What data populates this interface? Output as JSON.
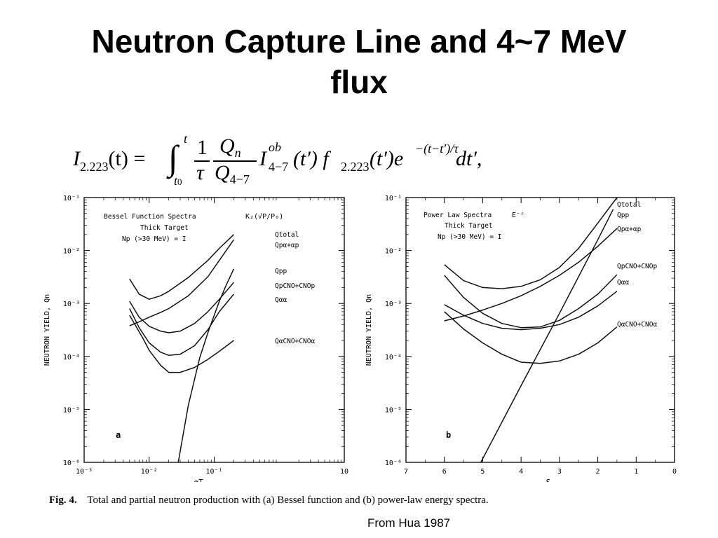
{
  "title": [
    "Neutron Capture Line and 4~7 MeV",
    "flux"
  ],
  "formula": {
    "lhs": "I",
    "lhs_sub": "2.223",
    "lhs_arg": "(t) =",
    "upper": "t",
    "lower": "t",
    "lower_sub": "0",
    "frac1_num": "1",
    "frac1_den": "τ",
    "frac2_num": "Q",
    "frac2_num_sub": "n",
    "frac2_den": "Q",
    "frac2_den_sub": "4−7",
    "term1": "I",
    "term1_sup": "ob",
    "term1_sub": "4−7",
    "term1_arg": "(t′) f",
    "term2_sub": "2.223",
    "term2_arg": "(t′)e",
    "exp": "−(t−t′)/τ",
    "tail": "dt′,"
  },
  "chart_data": [
    {
      "type": "line",
      "panel_label": "a",
      "xscale": "log",
      "yscale": "log",
      "xlim": [
        0.001,
        10
      ],
      "ylim": [
        1e-06,
        0.1
      ],
      "xlabel": "αT",
      "ylabel": "NEUTRON YIELD, Qn",
      "x_ticks": [
        {
          "label": "10⁻³",
          "value": 0.001
        },
        {
          "label": "10⁻²",
          "value": 0.01
        },
        {
          "label": "10⁻¹",
          "value": 0.1
        },
        {
          "label": "10",
          "value": 10
        }
      ],
      "y_ticks": [
        {
          "label": "10⁻¹",
          "value": 0.1
        },
        {
          "label": "10⁻²",
          "value": 0.01
        },
        {
          "label": "10⁻³",
          "value": 0.001
        },
        {
          "label": "10⁻⁴",
          "value": 0.0001
        },
        {
          "label": "10⁻⁵",
          "value": 1e-05
        },
        {
          "label": "10⁻⁶",
          "value": 1e-06
        }
      ],
      "annotation": [
        "Bessel Function Spectra",
        "Thick Target",
        "Np  (>30 MeV) = I"
      ],
      "annotation_formula": "K₂(√P/P₀)",
      "series": [
        {
          "name": "Qtotal",
          "x": [
            0.005,
            0.007,
            0.01,
            0.015,
            0.02,
            0.04,
            0.08,
            0.12,
            0.2
          ],
          "y": [
            0.0029,
            0.0015,
            0.0012,
            0.0014,
            0.0017,
            0.0031,
            0.0065,
            0.011,
            0.02
          ]
        },
        {
          "name": "Qpα+αp",
          "x": [
            0.005,
            0.007,
            0.01,
            0.015,
            0.02,
            0.04,
            0.08,
            0.12,
            0.2
          ],
          "y": [
            0.00038,
            0.00045,
            0.00055,
            0.00068,
            0.0008,
            0.0014,
            0.0032,
            0.0065,
            0.016
          ]
        },
        {
          "name": "Qpp",
          "x": [
            0.028,
            0.04,
            0.06,
            0.08,
            0.1,
            0.12,
            0.15,
            0.2
          ],
          "y": [
            1e-06,
            1.2e-05,
            9.5e-05,
            0.00028,
            0.0006,
            0.0011,
            0.0021,
            0.0045
          ]
        },
        {
          "name": "QpCNO+CNOp",
          "x": [
            0.005,
            0.007,
            0.01,
            0.015,
            0.02,
            0.03,
            0.05,
            0.08,
            0.12,
            0.2
          ],
          "y": [
            0.0011,
            0.00055,
            0.00037,
            0.0003,
            0.00028,
            0.0003,
            0.00042,
            0.0007,
            0.0012,
            0.0025
          ]
        },
        {
          "name": "Qαα",
          "x": [
            0.005,
            0.007,
            0.01,
            0.015,
            0.02,
            0.03,
            0.05,
            0.08,
            0.12,
            0.2
          ],
          "y": [
            0.0008,
            0.00035,
            0.00018,
            0.00012,
            0.000105,
            0.00011,
            0.00016,
            0.00032,
            0.0007,
            0.0015
          ]
        },
        {
          "name": "QαCNO+CNOα",
          "x": [
            0.005,
            0.008,
            0.01,
            0.015,
            0.02,
            0.03,
            0.05,
            0.08,
            0.12,
            0.2
          ],
          "y": [
            0.0006,
            0.00022,
            0.00013,
            6.8e-05,
            5e-05,
            5e-05,
            6.2e-05,
            8.8e-05,
            0.000125,
            0.0002
          ]
        }
      ]
    },
    {
      "type": "line",
      "panel_label": "b",
      "xscale": "linear",
      "yscale": "log",
      "xlim": [
        7,
        0
      ],
      "ylim": [
        1e-06,
        0.1
      ],
      "xlabel": "S",
      "ylabel": "NEUTRON YIELD, Qn",
      "x_ticks": [
        {
          "label": "7",
          "value": 7
        },
        {
          "label": "6",
          "value": 6
        },
        {
          "label": "5",
          "value": 5
        },
        {
          "label": "4",
          "value": 4
        },
        {
          "label": "3",
          "value": 3
        },
        {
          "label": "2",
          "value": 2
        },
        {
          "label": "1",
          "value": 1
        },
        {
          "label": "0",
          "value": 0
        }
      ],
      "y_ticks": [
        {
          "label": "10⁻¹",
          "value": 0.1
        },
        {
          "label": "10⁻²",
          "value": 0.01
        },
        {
          "label": "10⁻³",
          "value": 0.001
        },
        {
          "label": "10⁻⁴",
          "value": 0.0001
        },
        {
          "label": "10⁻⁵",
          "value": 1e-05
        },
        {
          "label": "10⁻⁶",
          "value": 1e-06
        }
      ],
      "annotation": [
        "Power Law Spectra",
        "Thick Target",
        "Np  (>30 MeV) = I"
      ],
      "annotation_formula": "E⁻ˢ",
      "series": [
        {
          "name": "Qtotal",
          "x": [
            6,
            5.5,
            5,
            4.5,
            4,
            3.5,
            3,
            2.5,
            2,
            1.5
          ],
          "y": [
            0.0054,
            0.0027,
            0.002,
            0.0019,
            0.0021,
            0.0028,
            0.0048,
            0.011,
            0.033,
            0.1
          ]
        },
        {
          "name": "Qpp",
          "x": [
            5.05,
            4,
            3,
            2,
            1.6
          ],
          "y": [
            1e-06,
            2.8e-05,
            0.00065,
            0.016,
            0.06
          ]
        },
        {
          "name": "Qpα+αp",
          "x": [
            6,
            5.5,
            5,
            4.5,
            4,
            3.5,
            3,
            2.5,
            2,
            1.5
          ],
          "y": [
            0.00047,
            0.00058,
            0.00075,
            0.001,
            0.0014,
            0.0021,
            0.0034,
            0.006,
            0.012,
            0.026
          ]
        },
        {
          "name": "QpCNO+CNOp",
          "x": [
            6,
            5.5,
            5,
            4.5,
            4,
            3.5,
            3,
            2.5,
            2,
            1.5
          ],
          "y": [
            0.0034,
            0.0013,
            0.00065,
            0.00042,
            0.00035,
            0.00036,
            0.00048,
            0.0008,
            0.0015,
            0.0035
          ]
        },
        {
          "name": "Qαα",
          "x": [
            6,
            5.5,
            5,
            4.5,
            4,
            3.5,
            3,
            2.5,
            2,
            1.5
          ],
          "y": [
            0.00095,
            0.0006,
            0.00042,
            0.00034,
            0.00032,
            0.00034,
            0.0004,
            0.00055,
            0.0009,
            0.0017
          ]
        },
        {
          "name": "QαCNO+CNOα",
          "x": [
            6,
            5.5,
            5,
            4.5,
            4,
            3.5,
            3,
            2.5,
            2,
            1.5
          ],
          "y": [
            0.0007,
            0.00033,
            0.00018,
            0.00011,
            7.8e-05,
            7.4e-05,
            8.2e-05,
            0.00011,
            0.00018,
            0.00036
          ]
        }
      ]
    }
  ],
  "caption": {
    "label": "Fig. 4.",
    "text": "Total and partial neutron production with (a) Bessel function and (b) power-law energy spectra."
  },
  "source": "From Hua 1987"
}
